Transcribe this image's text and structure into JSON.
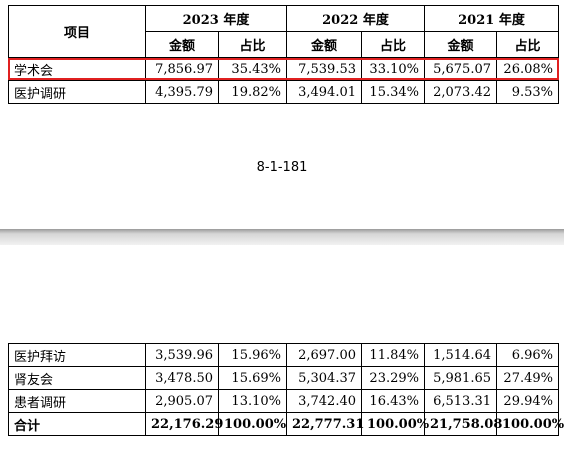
{
  "header": {
    "item_label": "项目",
    "years": [
      "2023 年度",
      "2022 年度",
      "2021 年度"
    ],
    "sub_amount": "金额",
    "sub_ratio": "占比"
  },
  "top_rows": [
    {
      "name": "学术会",
      "v": [
        "7,856.97",
        "35.43%",
        "7,539.53",
        "33.10%",
        "5,675.07",
        "26.08%"
      ]
    },
    {
      "name": "医护调研",
      "v": [
        "4,395.79",
        "19.82%",
        "3,494.01",
        "15.34%",
        "2,073.42",
        "9.53%"
      ]
    }
  ],
  "page_number": "8-1-181",
  "bottom_rows": [
    {
      "name": "医护拜访",
      "v": [
        "3,539.96",
        "15.96%",
        "2,697.00",
        "11.84%",
        "1,514.64",
        "6.96%"
      ]
    },
    {
      "name": "肾友会",
      "v": [
        "3,478.50",
        "15.69%",
        "5,304.37",
        "23.29%",
        "5,981.65",
        "27.49%"
      ]
    },
    {
      "name": "患者调研",
      "v": [
        "2,905.07",
        "13.10%",
        "3,742.40",
        "16.43%",
        "6,513.31",
        "29.94%"
      ]
    }
  ],
  "total": {
    "name": "合计",
    "v": [
      "22,176.29",
      "100.00%",
      "22,777.31",
      "100.00%",
      "21,758.08",
      "100.00%"
    ]
  },
  "colors": {
    "highlight": "#e02020"
  }
}
